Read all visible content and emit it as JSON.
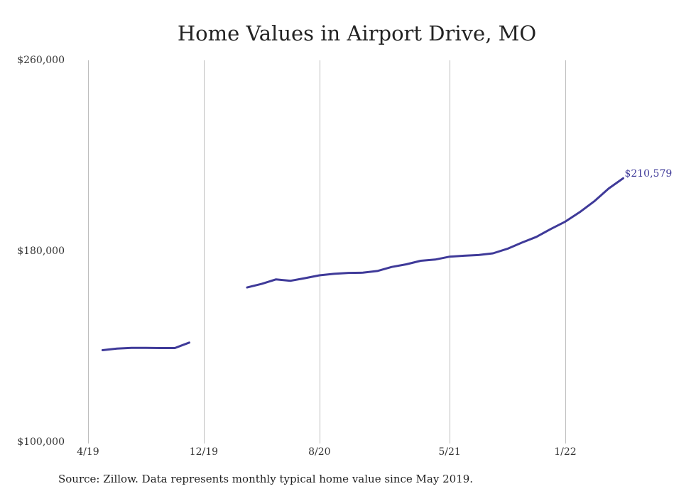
{
  "chart_data": {
    "type": "line",
    "title": "Home Values in Airport Drive, MO",
    "xlabel": "",
    "ylabel": "",
    "ylim": [
      100000,
      260000
    ],
    "y_ticks": [
      "$260,000",
      "$180,000",
      "$100,000"
    ],
    "y_tick_values": [
      260000,
      180000,
      100000
    ],
    "x_ticks": [
      "4/19",
      "12/19",
      "8/20",
      "5/21",
      "1/22"
    ],
    "grid": "vertical",
    "series": [
      {
        "color": "#3f3a99",
        "segments": [
          [
            {
              "x": "2019-05",
              "y": 138500
            },
            {
              "x": "2019-06",
              "y": 139200
            },
            {
              "x": "2019-07",
              "y": 139500
            },
            {
              "x": "2019-08",
              "y": 139500
            },
            {
              "x": "2019-09",
              "y": 139400
            },
            {
              "x": "2019-10",
              "y": 139400
            },
            {
              "x": "2019-11",
              "y": 141700
            }
          ],
          [
            {
              "x": "2020-03",
              "y": 164800
            },
            {
              "x": "2020-04",
              "y": 166300
            },
            {
              "x": "2020-05",
              "y": 168200
            },
            {
              "x": "2020-06",
              "y": 167600
            },
            {
              "x": "2020-07",
              "y": 168700
            },
            {
              "x": "2020-08",
              "y": 169900
            },
            {
              "x": "2020-09",
              "y": 170500
            },
            {
              "x": "2020-10",
              "y": 170900
            },
            {
              "x": "2020-11",
              "y": 171000
            },
            {
              "x": "2020-12",
              "y": 171700
            },
            {
              "x": "2021-01",
              "y": 173400
            },
            {
              "x": "2021-02",
              "y": 174500
            },
            {
              "x": "2021-03",
              "y": 176000
            },
            {
              "x": "2021-04",
              "y": 176500
            },
            {
              "x": "2021-05",
              "y": 177700
            },
            {
              "x": "2021-06",
              "y": 178100
            },
            {
              "x": "2021-07",
              "y": 178400
            },
            {
              "x": "2021-08",
              "y": 179100
            },
            {
              "x": "2021-09",
              "y": 181000
            },
            {
              "x": "2021-10",
              "y": 183600
            },
            {
              "x": "2021-11",
              "y": 186000
            },
            {
              "x": "2021-12",
              "y": 189300
            },
            {
              "x": "2022-01",
              "y": 192400
            },
            {
              "x": "2022-02",
              "y": 196400
            },
            {
              "x": "2022-03",
              "y": 200900
            },
            {
              "x": "2022-04",
              "y": 206300
            },
            {
              "x": "2022-05",
              "y": 210579
            }
          ]
        ]
      }
    ],
    "annotations": [
      {
        "text": "$210,579",
        "x": "2022-05",
        "y": 210579
      }
    ]
  },
  "footer": {
    "source_text": "Source: Zillow. Data represents monthly typical home value since May 2019."
  }
}
